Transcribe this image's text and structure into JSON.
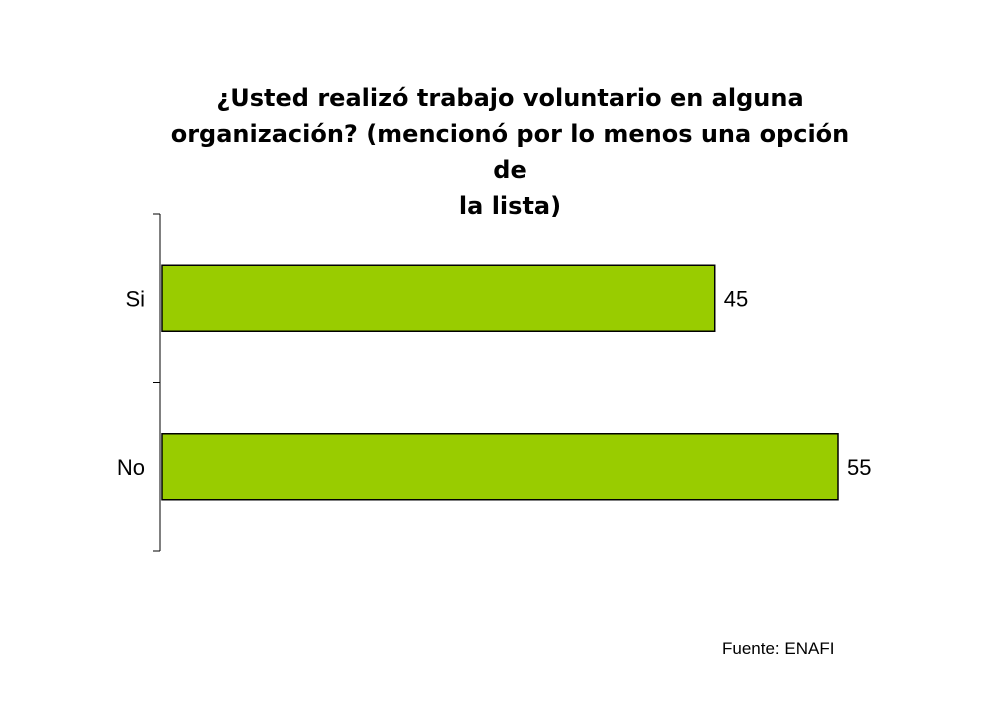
{
  "chart_data": {
    "type": "bar",
    "orientation": "horizontal",
    "title_lines": [
      "¿Usted realizó trabajo voluntario en alguna",
      "organización? (mencionó por lo menos una opción de",
      "la lista)"
    ],
    "categories": [
      "Si",
      "No"
    ],
    "values": [
      45,
      55
    ],
    "data_labels": [
      "45",
      "55"
    ],
    "bar_color": "#99CC00",
    "xlim": [
      0,
      55
    ],
    "grid": false,
    "legend": "none"
  },
  "source": "Fuente: ENAFI"
}
